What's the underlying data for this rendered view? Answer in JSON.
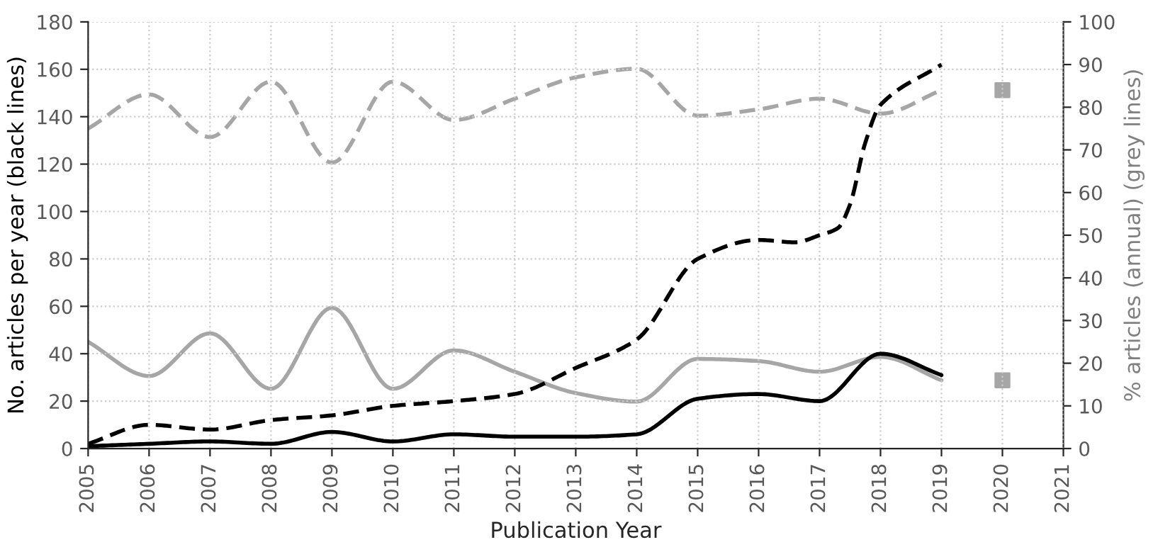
{
  "chart_data": {
    "type": "line",
    "xlabel": "Publication Year",
    "ylabel": "No. articles per year (black lines)",
    "y2label": "% articles (annual) (grey lines)",
    "xlim": [
      2005,
      2021
    ],
    "xticks": [
      2005,
      2006,
      2007,
      2008,
      2009,
      2010,
      2011,
      2012,
      2013,
      2014,
      2015,
      2016,
      2017,
      2018,
      2019,
      2020,
      2021
    ],
    "ylim": [
      0,
      180
    ],
    "yticks": [
      0,
      20,
      40,
      60,
      80,
      100,
      120,
      140,
      160,
      180
    ],
    "y2lim": [
      0,
      100
    ],
    "y2ticks": [
      0,
      10,
      20,
      30,
      40,
      50,
      60,
      70,
      80,
      90,
      100
    ],
    "grid": true,
    "legend": false,
    "series": [
      {
        "color": "#000000",
        "line_style": "solid",
        "x": [
          2005,
          2006,
          2007,
          2008,
          2009,
          2010,
          2011,
          2012,
          2013,
          2014,
          2015,
          2016,
          2017,
          2018,
          2019
        ],
        "values": [
          1,
          2,
          3,
          2,
          7,
          3,
          6,
          5,
          5,
          6,
          21,
          23,
          20,
          40,
          31
        ]
      },
      {
        "color": "#000000",
        "line_style": "dashed",
        "x": [
          2005,
          2006,
          2007,
          2008,
          2009,
          2010,
          2011,
          2012,
          2013,
          2014,
          2015,
          2016,
          2016.6,
          2017,
          2017.3,
          2017.5,
          2017.75,
          2018,
          2019
        ],
        "values": [
          2,
          10,
          8,
          12,
          14,
          18,
          20,
          23,
          34,
          46,
          80,
          88,
          87,
          90,
          93,
          103,
          129,
          145,
          162
        ]
      },
      {
        "color": "#a6a6a6",
        "line_style": "solid",
        "axis": "y2",
        "x": [
          2005,
          2006,
          2007,
          2008,
          2009,
          2010,
          2011,
          2012,
          2013,
          2014,
          2015,
          2016,
          2017,
          2018,
          2019
        ],
        "values": [
          25,
          17,
          27,
          14,
          33,
          14,
          23,
          18,
          13,
          11,
          21,
          20.5,
          18,
          21.5,
          16
        ]
      },
      {
        "color": "#a6a6a6",
        "line_style": "dashed",
        "axis": "y2",
        "x": [
          2005,
          2006,
          2007,
          2008,
          2009,
          2010,
          2011,
          2012,
          2013,
          2014,
          2015,
          2016,
          2017,
          2018,
          2019
        ],
        "values": [
          75,
          83,
          73,
          86,
          67,
          86,
          77,
          82,
          87,
          89,
          78,
          79.5,
          82,
          78.5,
          84
        ]
      },
      {
        "type": "scatter",
        "marker": "square",
        "color": "#a6a6a6",
        "axis": "y2",
        "x": [
          2020,
          2020
        ],
        "values": [
          16,
          84
        ]
      }
    ]
  }
}
